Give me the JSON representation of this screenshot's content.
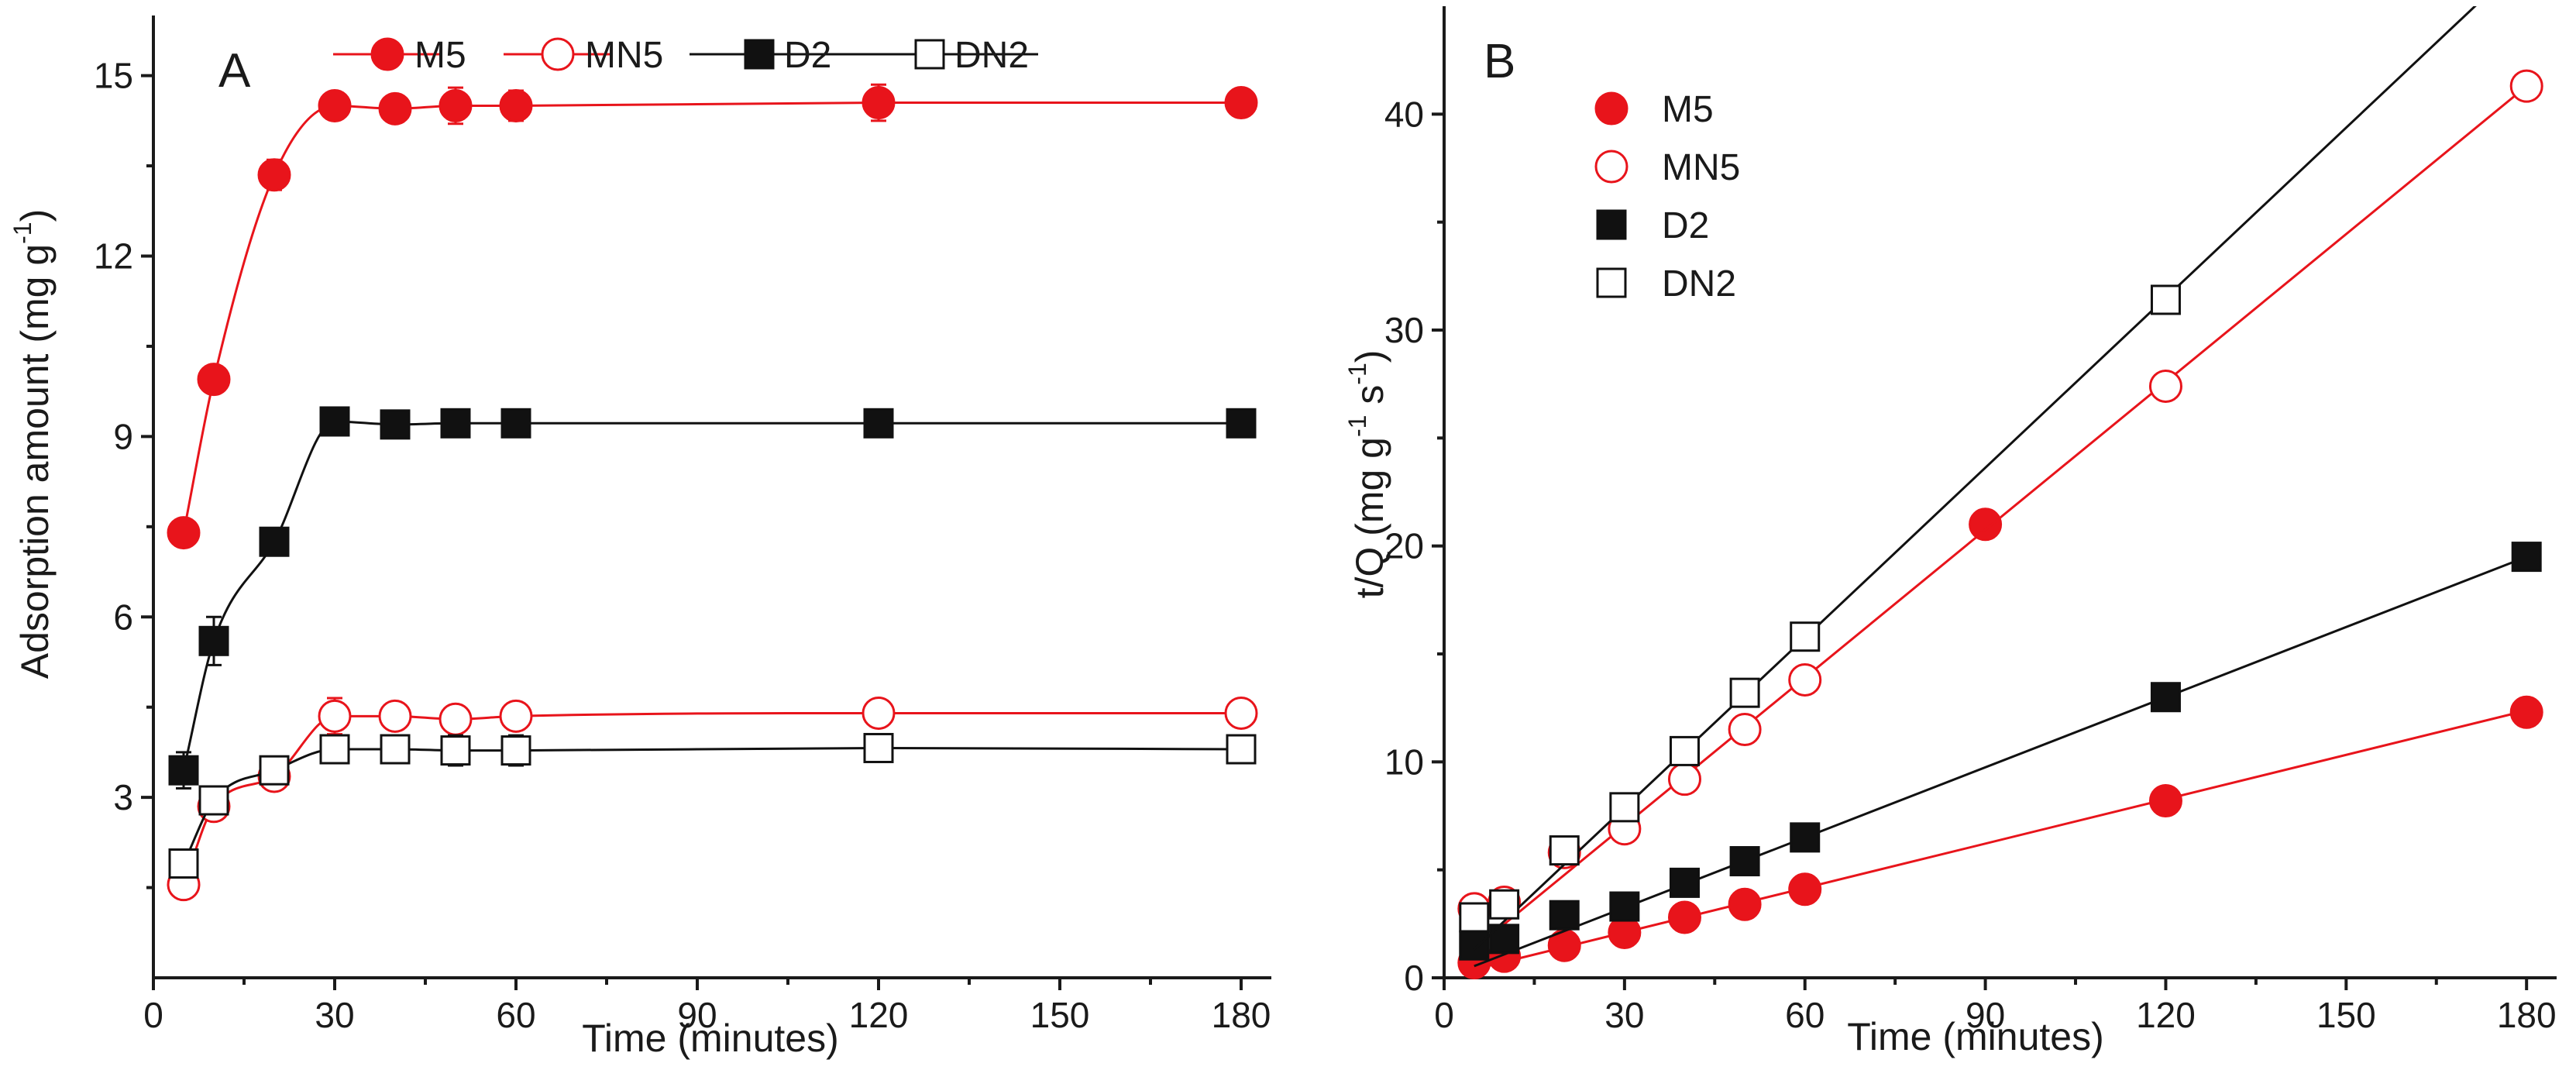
{
  "colors": {
    "red": "#e8141b",
    "black": "#111111",
    "white": "#ffffff"
  },
  "chart_data": [
    {
      "panel": "A",
      "type": "line",
      "xlabel": "Time (minutes)",
      "ylabel_main": "Adsorption amount (mg g",
      "ylabel_sup": "-1",
      "ylabel_tail": ")",
      "xlim": [
        0,
        185
      ],
      "ylim": [
        0,
        16
      ],
      "xticks": [
        0,
        30,
        60,
        90,
        120,
        150,
        180
      ],
      "yticks": [
        3,
        6,
        9,
        12,
        15
      ],
      "legend_position": "top",
      "fit": "smooth curve",
      "series": [
        {
          "name": "M5",
          "color": "#e8141b",
          "marker": "circle",
          "filled": true,
          "x": [
            5,
            10,
            20,
            30,
            40,
            50,
            60,
            120,
            180
          ],
          "y": [
            7.4,
            9.95,
            13.35,
            14.5,
            14.45,
            14.5,
            14.5,
            14.55,
            14.55
          ],
          "err": [
            0.1,
            0.15,
            0.25,
            0.15,
            0.2,
            0.3,
            0.25,
            0.3,
            0.15
          ]
        },
        {
          "name": "MN5",
          "color": "#e8141b",
          "marker": "circle",
          "filled": false,
          "x": [
            5,
            10,
            20,
            30,
            40,
            50,
            60,
            120,
            180
          ],
          "y": [
            1.55,
            2.85,
            3.35,
            4.35,
            4.35,
            4.3,
            4.35,
            4.4,
            4.4
          ],
          "err": [
            0.15,
            0.15,
            0.15,
            0.3,
            0.15,
            0.15,
            0.15,
            0.15,
            0.15
          ]
        },
        {
          "name": "D2",
          "color": "#111111",
          "marker": "square",
          "filled": true,
          "x": [
            5,
            10,
            20,
            30,
            40,
            50,
            60,
            120,
            180
          ],
          "y": [
            3.45,
            5.6,
            7.25,
            9.25,
            9.2,
            9.22,
            9.22,
            9.22,
            9.22
          ],
          "err": [
            0.3,
            0.4,
            0.15,
            0.1,
            0.2,
            0.1,
            0.1,
            0.1,
            0.1
          ]
        },
        {
          "name": "DN2",
          "color": "#111111",
          "marker": "square",
          "filled": false,
          "x": [
            5,
            10,
            20,
            30,
            40,
            50,
            60,
            120,
            180
          ],
          "y": [
            1.9,
            2.95,
            3.45,
            3.8,
            3.8,
            3.78,
            3.78,
            3.82,
            3.8
          ],
          "err": [
            0.15,
            0.15,
            0.2,
            0.15,
            0.2,
            0.25,
            0.25,
            0.15,
            0.2
          ]
        }
      ]
    },
    {
      "panel": "B",
      "type": "scatter",
      "xlabel": "Time (minutes)",
      "ylabel_main": "t/Q (mg g",
      "ylabel_sup1": "-1",
      "ylabel_mid": " s",
      "ylabel_sup2": "-1",
      "ylabel_tail": ")",
      "xlim": [
        0,
        185
      ],
      "ylim": [
        0,
        45
      ],
      "xticks": [
        0,
        30,
        60,
        90,
        120,
        150,
        180
      ],
      "yticks": [
        0,
        10,
        20,
        30,
        40
      ],
      "legend_position": "top-left",
      "fit": "linear",
      "series": [
        {
          "name": "M5",
          "color": "#e8141b",
          "marker": "circle",
          "filled": true,
          "x": [
            5,
            10,
            20,
            30,
            40,
            50,
            60,
            90,
            120,
            180
          ],
          "y": [
            0.7,
            1.0,
            1.5,
            2.1,
            2.8,
            3.4,
            4.1,
            21.0,
            8.2,
            12.3
          ],
          "fit_line": {
            "slope": 0.0685,
            "intercept": 0.05
          }
        },
        {
          "name": "MN5",
          "color": "#e8141b",
          "marker": "circle",
          "filled": false,
          "x": [
            5,
            10,
            20,
            30,
            40,
            50,
            60,
            120,
            180
          ],
          "y": [
            3.2,
            3.5,
            5.8,
            6.9,
            9.2,
            11.5,
            13.8,
            27.4,
            41.3
          ],
          "fit_line": {
            "slope": 0.2283,
            "intercept": 0.2
          }
        },
        {
          "name": "D2",
          "color": "#111111",
          "marker": "square",
          "filled": true,
          "x": [
            5,
            10,
            20,
            30,
            40,
            50,
            60,
            120,
            180
          ],
          "y": [
            1.5,
            1.8,
            2.9,
            3.3,
            4.4,
            5.4,
            6.5,
            13.0,
            19.5
          ],
          "fit_line": {
            "slope": 0.1083,
            "intercept": 0.0
          }
        },
        {
          "name": "DN2",
          "color": "#111111",
          "marker": "square",
          "filled": false,
          "x": [
            5,
            10,
            20,
            30,
            40,
            50,
            60,
            120
          ],
          "y": [
            2.8,
            3.4,
            5.9,
            7.9,
            10.5,
            13.2,
            15.8,
            31.4
          ],
          "fit_line": {
            "slope": 0.2625,
            "intercept": 0.0
          }
        }
      ]
    }
  ]
}
